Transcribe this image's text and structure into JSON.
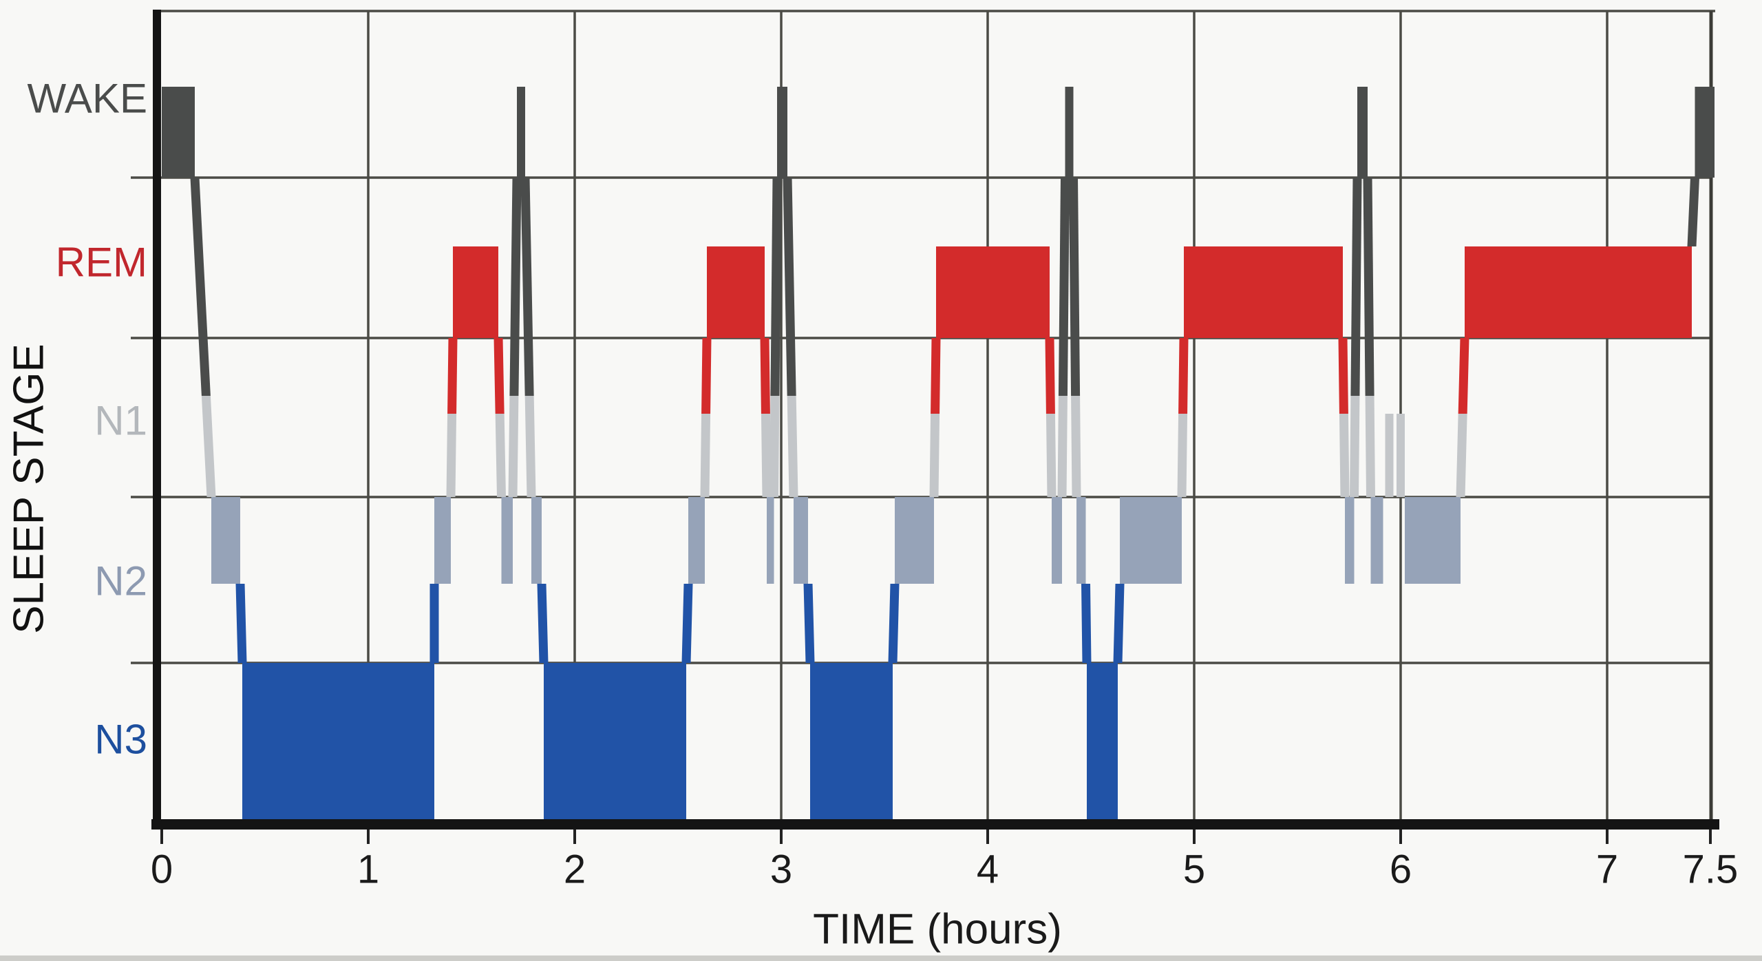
{
  "chart_data": {
    "type": "hypnogram-step",
    "title": "",
    "xlabel": "TIME (hours)",
    "ylabel": "SLEEP STAGE",
    "xlim": [
      0,
      7.5
    ],
    "grid": true,
    "x_ticks": [
      {
        "label": "0",
        "hour": 0
      },
      {
        "label": "1",
        "hour": 1
      },
      {
        "label": "2",
        "hour": 2
      },
      {
        "label": "3",
        "hour": 3
      },
      {
        "label": "4",
        "hour": 4
      },
      {
        "label": "5",
        "hour": 5
      },
      {
        "label": "6",
        "hour": 6
      },
      {
        "label": "7",
        "hour": 7
      },
      {
        "label": "7.5",
        "hour": 7.5
      }
    ],
    "stages": [
      {
        "name": "WAKE",
        "color": "#4a4c4b",
        "label_color": "#4a4c4b"
      },
      {
        "name": "REM",
        "color": "#d32b2b",
        "label_color": "#c1272d"
      },
      {
        "name": "N1",
        "color": "#c3c6c9",
        "label_color": "#b3b7bb"
      },
      {
        "name": "N2",
        "color": "#96a3b8",
        "label_color": "#8d9ab1"
      },
      {
        "name": "N3",
        "color": "#2153a7",
        "label_color": "#1d4f9e"
      }
    ],
    "segments": [
      {
        "stage": "WAKE",
        "start": 0.0,
        "end": 0.16
      },
      {
        "stage": "N2",
        "start": 0.24,
        "end": 0.38
      },
      {
        "stage": "N3",
        "start": 0.39,
        "end": 1.32
      },
      {
        "stage": "N2",
        "start": 1.32,
        "end": 1.4
      },
      {
        "stage": "REM",
        "start": 1.41,
        "end": 1.63
      },
      {
        "stage": "N2",
        "start": 1.645,
        "end": 1.7
      },
      {
        "stage": "WAKE",
        "start": 1.72,
        "end": 1.76
      },
      {
        "stage": "N2",
        "start": 1.79,
        "end": 1.84
      },
      {
        "stage": "N3",
        "start": 1.85,
        "end": 2.54
      },
      {
        "stage": "N2",
        "start": 2.55,
        "end": 2.63
      },
      {
        "stage": "REM",
        "start": 2.64,
        "end": 2.92
      },
      {
        "stage": "N2",
        "start": 2.93,
        "end": 2.965
      },
      {
        "stage": "WAKE",
        "start": 2.98,
        "end": 3.03
      },
      {
        "stage": "N2",
        "start": 3.06,
        "end": 3.13
      },
      {
        "stage": "N3",
        "start": 3.14,
        "end": 3.54
      },
      {
        "stage": "N2",
        "start": 3.55,
        "end": 3.74
      },
      {
        "stage": "REM",
        "start": 3.75,
        "end": 4.3
      },
      {
        "stage": "N2",
        "start": 4.31,
        "end": 4.36
      },
      {
        "stage": "WAKE",
        "start": 4.375,
        "end": 4.415
      },
      {
        "stage": "N2",
        "start": 4.43,
        "end": 4.475
      },
      {
        "stage": "N3",
        "start": 4.48,
        "end": 4.63
      },
      {
        "stage": "N2",
        "start": 4.64,
        "end": 4.94
      },
      {
        "stage": "REM",
        "start": 4.95,
        "end": 5.72
      },
      {
        "stage": "N2",
        "start": 5.73,
        "end": 5.775
      },
      {
        "stage": "WAKE",
        "start": 5.79,
        "end": 5.84
      },
      {
        "stage": "N2",
        "start": 5.855,
        "end": 5.915
      },
      {
        "stage": "N1",
        "start": 5.925,
        "end": 5.965
      },
      {
        "stage": "N1",
        "start": 5.98,
        "end": 6.02
      },
      {
        "stage": "N2",
        "start": 6.02,
        "end": 6.29
      },
      {
        "stage": "REM",
        "start": 6.31,
        "end": 7.41
      },
      {
        "stage": "WAKE",
        "start": 7.425,
        "end": 7.52
      }
    ],
    "colors": {
      "grid": "#4b4b45",
      "axis": "#141414",
      "background": "#f8f8f6",
      "text": "#1a1a1a"
    }
  }
}
